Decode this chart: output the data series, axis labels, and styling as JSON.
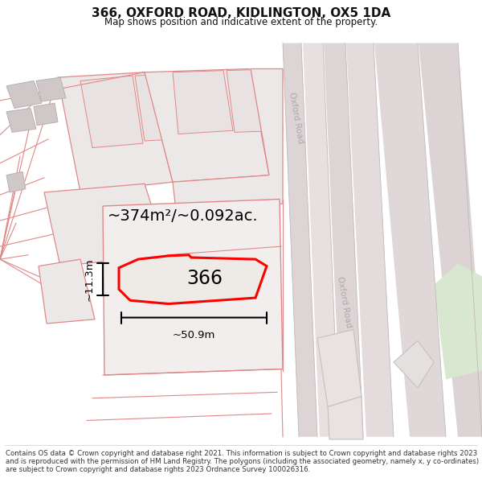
{
  "title": "366, OXFORD ROAD, KIDLINGTON, OX5 1DA",
  "subtitle": "Map shows position and indicative extent of the property.",
  "footer": "Contains OS data © Crown copyright and database right 2021. This information is subject to Crown copyright and database rights 2023 and is reproduced with the permission of HM Land Registry. The polygons (including the associated geometry, namely x, y co-ordinates) are subject to Crown copyright and database rights 2023 Ordnance Survey 100026316.",
  "area_label": "~374m²/~0.092ac.",
  "width_label": "~50.9m",
  "height_label": "~11.3m",
  "plot_number": "366",
  "map_bg": "#f7f2f2",
  "parcel_fill": "#ede8e8",
  "parcel_edge": "#e08888",
  "building_fill": "#d0c8c8",
  "building_edge": "#b8b0b0",
  "highlight_fill": "#edeae8",
  "highlight_edge": "#e08888",
  "road_fill": "#e0d8d8",
  "road_fill2": "#ddd5d5",
  "plot_fill": "#eeeae6",
  "plot_edge": "#ff0000",
  "green_fill": "#d8e8d0",
  "road_label_color": "#aaaaaa",
  "dim_color": "#222222",
  "text_color": "#111111",
  "footer_color": "#333333"
}
